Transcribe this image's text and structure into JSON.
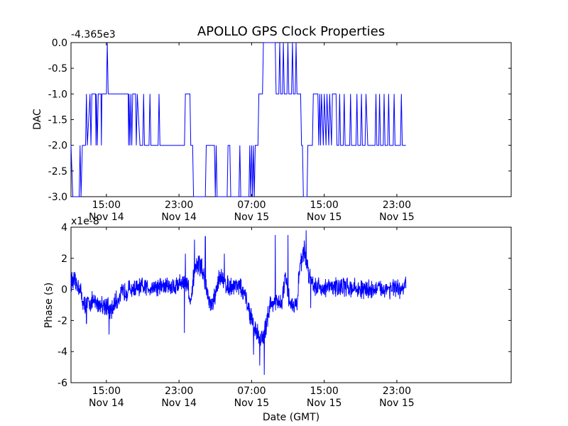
{
  "figure_title": "APOLLO GPS Clock Properties",
  "colors": {
    "line": "#0000ff",
    "axes": "#000000",
    "background": "#ffffff"
  },
  "chart_data": [
    {
      "type": "line",
      "ylabel": "DAC",
      "xlabel": "",
      "offset_text": "-4.365e3",
      "xlim_hours": [
        11.1,
        59.6
      ],
      "ylim": [
        -3.0,
        0.0
      ],
      "yticks": [
        {
          "value": 0.0,
          "label": "0.0"
        },
        {
          "value": -0.5,
          "label": "-0.5"
        },
        {
          "value": -1.0,
          "label": "-1.0"
        },
        {
          "value": -1.5,
          "label": "-1.5"
        },
        {
          "value": -2.0,
          "label": "-2.0"
        },
        {
          "value": -2.5,
          "label": "-2.5"
        },
        {
          "value": -3.0,
          "label": "-3.0"
        }
      ],
      "xticks": [
        {
          "hour": 15,
          "line1": "15:00",
          "line2": "Nov 14"
        },
        {
          "hour": 23,
          "line1": "23:00",
          "line2": "Nov 14"
        },
        {
          "hour": 31,
          "line1": "07:00",
          "line2": "Nov 15"
        },
        {
          "hour": 39,
          "line1": "15:00",
          "line2": "Nov 15"
        },
        {
          "hour": 47,
          "line1": "23:00",
          "line2": "Nov 15"
        }
      ],
      "segments": [
        [
          11.1,
          -2.0
        ],
        [
          11.3,
          -3.0
        ],
        [
          12.0,
          -3.0
        ],
        [
          12.1,
          -2.0
        ],
        [
          12.2,
          -3.0
        ],
        [
          12.35,
          -2.0
        ],
        [
          12.7,
          -2.0
        ],
        [
          12.8,
          -1.0
        ],
        [
          12.9,
          -2.0
        ],
        [
          13.2,
          -1.0
        ],
        [
          13.3,
          -2.0
        ],
        [
          13.4,
          -1.0
        ],
        [
          13.8,
          -1.0
        ],
        [
          13.85,
          -2.0
        ],
        [
          13.9,
          -1.0
        ],
        [
          14.0,
          -2.0
        ],
        [
          14.1,
          -1.0
        ],
        [
          14.4,
          -1.0
        ],
        [
          14.45,
          -2.0
        ],
        [
          14.5,
          -1.0
        ],
        [
          15.0,
          -1.0
        ],
        [
          15.1,
          0.0
        ],
        [
          15.2,
          -1.0
        ],
        [
          17.4,
          -1.0
        ],
        [
          17.45,
          -2.0
        ],
        [
          17.5,
          -1.0
        ],
        [
          17.6,
          -2.0
        ],
        [
          17.7,
          -1.0
        ],
        [
          17.8,
          -2.0
        ],
        [
          17.9,
          -1.0
        ],
        [
          18.2,
          -1.0
        ],
        [
          18.3,
          -2.0
        ],
        [
          18.4,
          -1.0
        ],
        [
          18.7,
          -2.0
        ],
        [
          19.0,
          -2.0
        ],
        [
          19.1,
          -1.0
        ],
        [
          19.2,
          -2.0
        ],
        [
          19.7,
          -2.0
        ],
        [
          19.8,
          -1.0
        ],
        [
          19.9,
          -2.0
        ],
        [
          20.7,
          -2.0
        ],
        [
          20.8,
          -1.0
        ],
        [
          20.9,
          -2.0
        ],
        [
          23.6,
          -2.0
        ],
        [
          23.7,
          -1.0
        ],
        [
          24.2,
          -1.0
        ],
        [
          24.3,
          -2.0
        ],
        [
          24.5,
          -2.0
        ],
        [
          24.6,
          -3.0
        ],
        [
          25.9,
          -3.0
        ],
        [
          26.0,
          -2.0
        ],
        [
          26.9,
          -2.0
        ],
        [
          27.0,
          -3.0
        ],
        [
          27.1,
          -2.0
        ],
        [
          27.2,
          -3.0
        ],
        [
          28.3,
          -3.0
        ],
        [
          28.4,
          -2.0
        ],
        [
          28.6,
          -2.0
        ],
        [
          28.7,
          -3.0
        ],
        [
          29.6,
          -3.0
        ],
        [
          29.7,
          -2.0
        ],
        [
          29.8,
          -3.0
        ],
        [
          30.7,
          -3.0
        ],
        [
          30.8,
          -2.0
        ],
        [
          30.9,
          -3.0
        ],
        [
          31.0,
          -2.0
        ],
        [
          31.1,
          -3.0
        ],
        [
          31.2,
          -2.0
        ],
        [
          31.3,
          -3.0
        ],
        [
          31.4,
          -2.0
        ],
        [
          31.7,
          -2.0
        ],
        [
          31.8,
          -1.0
        ],
        [
          32.2,
          -1.0
        ],
        [
          32.3,
          0.0
        ],
        [
          33.6,
          0.0
        ],
        [
          33.7,
          -1.0
        ],
        [
          34.0,
          -1.0
        ],
        [
          34.1,
          0.0
        ],
        [
          34.2,
          -1.0
        ],
        [
          34.4,
          -1.0
        ],
        [
          34.5,
          0.0
        ],
        [
          34.6,
          -1.0
        ],
        [
          34.9,
          -1.0
        ],
        [
          35.0,
          0.0
        ],
        [
          35.1,
          -1.0
        ],
        [
          35.4,
          -1.0
        ],
        [
          35.5,
          0.0
        ],
        [
          35.6,
          -1.0
        ],
        [
          35.8,
          -1.0
        ],
        [
          35.9,
          0.0
        ],
        [
          36.0,
          -1.0
        ],
        [
          36.4,
          -1.0
        ],
        [
          36.5,
          -2.0
        ],
        [
          36.6,
          -2.0
        ],
        [
          36.7,
          -3.0
        ],
        [
          37.1,
          -3.0
        ],
        [
          37.2,
          -2.0
        ],
        [
          37.7,
          -2.0
        ],
        [
          37.8,
          -1.0
        ],
        [
          38.3,
          -1.0
        ],
        [
          38.4,
          -2.0
        ],
        [
          38.5,
          -1.0
        ],
        [
          38.6,
          -2.0
        ],
        [
          38.7,
          -1.0
        ],
        [
          38.9,
          -2.0
        ],
        [
          39.0,
          -1.0
        ],
        [
          39.2,
          -2.0
        ],
        [
          39.3,
          -1.0
        ],
        [
          39.5,
          -2.0
        ],
        [
          39.6,
          -1.0
        ],
        [
          39.8,
          -2.0
        ],
        [
          39.9,
          -1.0
        ],
        [
          40.3,
          -1.0
        ],
        [
          40.4,
          -2.0
        ],
        [
          40.6,
          -2.0
        ],
        [
          40.7,
          -1.0
        ],
        [
          40.8,
          -2.0
        ],
        [
          41.1,
          -2.0
        ],
        [
          41.2,
          -1.0
        ],
        [
          41.3,
          -2.0
        ],
        [
          41.8,
          -2.0
        ],
        [
          41.9,
          -1.0
        ],
        [
          42.0,
          -2.0
        ],
        [
          42.5,
          -2.0
        ],
        [
          42.6,
          -1.0
        ],
        [
          42.7,
          -2.0
        ],
        [
          43.0,
          -2.0
        ],
        [
          43.1,
          -1.0
        ],
        [
          43.2,
          -2.0
        ],
        [
          43.5,
          -2.0
        ],
        [
          43.6,
          -1.0
        ],
        [
          43.8,
          -2.0
        ],
        [
          44.6,
          -2.0
        ],
        [
          44.7,
          -1.0
        ],
        [
          44.8,
          -2.0
        ],
        [
          45.0,
          -2.0
        ],
        [
          45.1,
          -1.0
        ],
        [
          45.2,
          -2.0
        ],
        [
          45.5,
          -2.0
        ],
        [
          45.6,
          -1.0
        ],
        [
          45.7,
          -2.0
        ],
        [
          46.0,
          -2.0
        ],
        [
          46.1,
          -1.0
        ],
        [
          46.2,
          -2.0
        ],
        [
          46.6,
          -2.0
        ],
        [
          46.7,
          -1.0
        ],
        [
          46.8,
          -2.0
        ],
        [
          47.4,
          -2.0
        ],
        [
          47.5,
          -1.0
        ],
        [
          47.6,
          -2.0
        ],
        [
          48.0,
          -2.0
        ]
      ]
    },
    {
      "type": "line",
      "ylabel": "Phase (s)",
      "xlabel": "Date (GMT)",
      "offset_text": "x1e-8",
      "xlim_hours": [
        11.1,
        59.6
      ],
      "ylim": [
        -6,
        4
      ],
      "yticks": [
        {
          "value": 4,
          "label": "4"
        },
        {
          "value": 2,
          "label": "2"
        },
        {
          "value": 0,
          "label": "0"
        },
        {
          "value": -2,
          "label": "-2"
        },
        {
          "value": -4,
          "label": "-4"
        },
        {
          "value": -6,
          "label": "-6"
        }
      ],
      "xticks": [
        {
          "hour": 15,
          "line1": "15:00",
          "line2": "Nov 14"
        },
        {
          "hour": 23,
          "line1": "23:00",
          "line2": "Nov 14"
        },
        {
          "hour": 31,
          "line1": "07:00",
          "line2": "Nov 15"
        },
        {
          "hour": 39,
          "line1": "15:00",
          "line2": "Nov 15"
        },
        {
          "hour": 47,
          "line1": "23:00",
          "line2": "Nov 15"
        }
      ],
      "trend": [
        [
          11.1,
          0.6
        ],
        [
          12.0,
          0.2
        ],
        [
          12.5,
          -1.0
        ],
        [
          13.3,
          -0.8
        ],
        [
          14.0,
          -0.9
        ],
        [
          15.0,
          -1.0
        ],
        [
          15.5,
          -1.5
        ],
        [
          16.0,
          -0.8
        ],
        [
          16.8,
          -0.2
        ],
        [
          17.5,
          0.0
        ],
        [
          19.0,
          0.1
        ],
        [
          21.0,
          0.2
        ],
        [
          22.5,
          0.2
        ],
        [
          23.3,
          0.5
        ],
        [
          24.0,
          0.3
        ],
        [
          24.3,
          -1.2
        ],
        [
          24.6,
          0.8
        ],
        [
          25.0,
          1.5
        ],
        [
          25.5,
          1.5
        ],
        [
          26.0,
          0.0
        ],
        [
          26.5,
          -1.2
        ],
        [
          27.0,
          -0.5
        ],
        [
          27.5,
          1.0
        ],
        [
          28.0,
          0.3
        ],
        [
          29.0,
          0.2
        ],
        [
          29.5,
          0.4
        ],
        [
          30.3,
          -0.5
        ],
        [
          30.8,
          -1.5
        ],
        [
          31.3,
          -2.5
        ],
        [
          31.8,
          -3.0
        ],
        [
          32.3,
          -3.2
        ],
        [
          33.0,
          -1.0
        ],
        [
          33.5,
          -0.8
        ],
        [
          34.3,
          -1.0
        ],
        [
          34.7,
          0.8
        ],
        [
          35.0,
          -0.5
        ],
        [
          35.5,
          -1.0
        ],
        [
          36.0,
          -1.0
        ],
        [
          36.3,
          1.5
        ],
        [
          36.8,
          2.5
        ],
        [
          37.3,
          1.0
        ],
        [
          38.0,
          0.2
        ],
        [
          39.0,
          0.1
        ],
        [
          41.0,
          0.2
        ],
        [
          43.0,
          0.0
        ],
        [
          45.0,
          0.0
        ],
        [
          46.5,
          0.1
        ],
        [
          47.4,
          -0.1
        ],
        [
          48.0,
          0.3
        ]
      ],
      "spikes": [
        [
          12.8,
          -2.2
        ],
        [
          15.3,
          -2.9
        ],
        [
          16.2,
          -1.2
        ],
        [
          23.6,
          -2.8
        ],
        [
          23.7,
          2.3
        ],
        [
          24.7,
          3.2
        ],
        [
          25.9,
          3.4
        ],
        [
          28.0,
          2.3
        ],
        [
          31.2,
          -4.2
        ],
        [
          31.9,
          -4.9
        ],
        [
          32.4,
          -5.5
        ],
        [
          33.6,
          3.5
        ],
        [
          35.0,
          3.5
        ],
        [
          37.0,
          3.8
        ],
        [
          37.5,
          -1.2
        ]
      ]
    }
  ]
}
